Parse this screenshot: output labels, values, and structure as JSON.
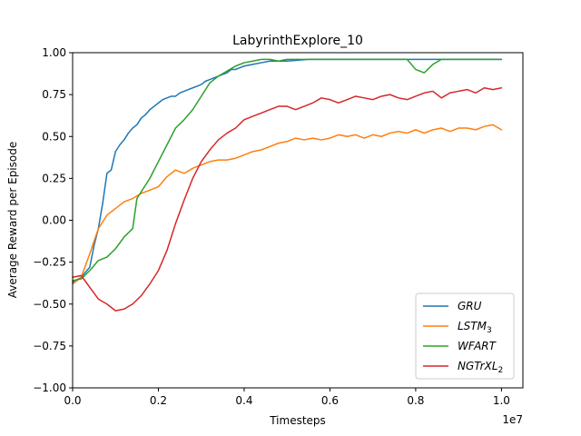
{
  "chart_data": {
    "type": "line",
    "title": "LabyrinthExplore_10",
    "xlabel": "Timesteps",
    "ylabel": "Average Reward per Episode",
    "x_multiplier_label": "1e7",
    "xlim": [
      0.0,
      1.05
    ],
    "ylim": [
      -1.0,
      1.0
    ],
    "xticks": [
      "0.0",
      "0.2",
      "0.4",
      "0.6",
      "0.8",
      "1.0"
    ],
    "yticks": [
      "−1.00",
      "−0.75",
      "−0.50",
      "−0.25",
      "0.00",
      "0.25",
      "0.50",
      "0.75",
      "1.00"
    ],
    "grid": false,
    "legend_position": "lower-right",
    "series": [
      {
        "name": "GRU",
        "sub": "",
        "color": "#1f77b4",
        "x": [
          0.0,
          0.02,
          0.04,
          0.05,
          0.06,
          0.07,
          0.08,
          0.09,
          0.1,
          0.11,
          0.12,
          0.13,
          0.14,
          0.15,
          0.16,
          0.17,
          0.18,
          0.19,
          0.2,
          0.21,
          0.22,
          0.23,
          0.24,
          0.25,
          0.26,
          0.27,
          0.28,
          0.29,
          0.3,
          0.31,
          0.32,
          0.33,
          0.34,
          0.35,
          0.36,
          0.37,
          0.38,
          0.39,
          0.4,
          0.42,
          0.44,
          0.46,
          0.48,
          0.5,
          0.55,
          0.6,
          0.65,
          0.7,
          0.75,
          0.8,
          0.85,
          0.9,
          0.95,
          1.0
        ],
        "y": [
          -0.37,
          -0.34,
          -0.28,
          -0.15,
          -0.05,
          0.1,
          0.28,
          0.3,
          0.41,
          0.45,
          0.48,
          0.52,
          0.55,
          0.57,
          0.61,
          0.63,
          0.66,
          0.68,
          0.7,
          0.72,
          0.73,
          0.74,
          0.74,
          0.76,
          0.77,
          0.78,
          0.79,
          0.8,
          0.81,
          0.83,
          0.84,
          0.85,
          0.86,
          0.87,
          0.88,
          0.9,
          0.9,
          0.91,
          0.92,
          0.93,
          0.94,
          0.95,
          0.95,
          0.95,
          0.96,
          0.96,
          0.96,
          0.96,
          0.96,
          0.96,
          0.96,
          0.96,
          0.96,
          0.96
        ]
      },
      {
        "name": "LSTM",
        "sub": "3",
        "color": "#ff7f0e",
        "x": [
          0.0,
          0.02,
          0.04,
          0.06,
          0.08,
          0.1,
          0.12,
          0.14,
          0.16,
          0.18,
          0.2,
          0.22,
          0.24,
          0.26,
          0.28,
          0.3,
          0.32,
          0.34,
          0.36,
          0.38,
          0.4,
          0.42,
          0.44,
          0.46,
          0.48,
          0.5,
          0.52,
          0.54,
          0.56,
          0.58,
          0.6,
          0.62,
          0.64,
          0.66,
          0.68,
          0.7,
          0.72,
          0.74,
          0.76,
          0.78,
          0.8,
          0.82,
          0.84,
          0.86,
          0.88,
          0.9,
          0.92,
          0.94,
          0.96,
          0.98,
          1.0
        ],
        "y": [
          -0.38,
          -0.34,
          -0.2,
          -0.05,
          0.03,
          0.07,
          0.11,
          0.13,
          0.16,
          0.18,
          0.2,
          0.26,
          0.3,
          0.28,
          0.31,
          0.33,
          0.35,
          0.36,
          0.36,
          0.37,
          0.39,
          0.41,
          0.42,
          0.44,
          0.46,
          0.47,
          0.49,
          0.48,
          0.49,
          0.48,
          0.49,
          0.51,
          0.5,
          0.51,
          0.49,
          0.51,
          0.5,
          0.52,
          0.53,
          0.52,
          0.54,
          0.52,
          0.54,
          0.55,
          0.53,
          0.55,
          0.55,
          0.54,
          0.56,
          0.57,
          0.54
        ]
      },
      {
        "name": "WFART",
        "sub": "",
        "color": "#2ca02c",
        "x": [
          0.0,
          0.02,
          0.04,
          0.06,
          0.08,
          0.1,
          0.12,
          0.14,
          0.15,
          0.16,
          0.18,
          0.2,
          0.22,
          0.24,
          0.26,
          0.28,
          0.3,
          0.32,
          0.34,
          0.36,
          0.38,
          0.4,
          0.42,
          0.44,
          0.46,
          0.48,
          0.5,
          0.55,
          0.6,
          0.65,
          0.7,
          0.75,
          0.78,
          0.8,
          0.82,
          0.84,
          0.86,
          0.9,
          0.95,
          1.0
        ],
        "y": [
          -0.36,
          -0.35,
          -0.3,
          -0.24,
          -0.22,
          -0.17,
          -0.1,
          -0.05,
          0.13,
          0.17,
          0.25,
          0.35,
          0.45,
          0.55,
          0.6,
          0.66,
          0.74,
          0.82,
          0.86,
          0.89,
          0.92,
          0.94,
          0.95,
          0.96,
          0.96,
          0.95,
          0.96,
          0.96,
          0.96,
          0.96,
          0.96,
          0.96,
          0.96,
          0.9,
          0.88,
          0.93,
          0.96,
          0.96,
          0.96,
          0.96
        ]
      },
      {
        "name": "NGTrXL",
        "sub": "2",
        "color": "#d62728",
        "x": [
          0.0,
          0.02,
          0.04,
          0.06,
          0.08,
          0.1,
          0.12,
          0.14,
          0.16,
          0.18,
          0.2,
          0.22,
          0.24,
          0.26,
          0.28,
          0.3,
          0.32,
          0.34,
          0.36,
          0.38,
          0.4,
          0.42,
          0.44,
          0.46,
          0.48,
          0.5,
          0.52,
          0.54,
          0.56,
          0.58,
          0.6,
          0.62,
          0.64,
          0.66,
          0.68,
          0.7,
          0.72,
          0.74,
          0.76,
          0.78,
          0.8,
          0.82,
          0.84,
          0.86,
          0.88,
          0.9,
          0.92,
          0.94,
          0.96,
          0.98,
          1.0
        ],
        "y": [
          -0.34,
          -0.33,
          -0.4,
          -0.47,
          -0.5,
          -0.54,
          -0.53,
          -0.5,
          -0.45,
          -0.38,
          -0.3,
          -0.18,
          -0.02,
          0.12,
          0.25,
          0.35,
          0.42,
          0.48,
          0.52,
          0.55,
          0.6,
          0.62,
          0.64,
          0.66,
          0.68,
          0.68,
          0.66,
          0.68,
          0.7,
          0.73,
          0.72,
          0.7,
          0.72,
          0.74,
          0.73,
          0.72,
          0.74,
          0.75,
          0.73,
          0.72,
          0.74,
          0.76,
          0.77,
          0.73,
          0.76,
          0.77,
          0.78,
          0.76,
          0.79,
          0.78,
          0.79
        ]
      }
    ]
  }
}
